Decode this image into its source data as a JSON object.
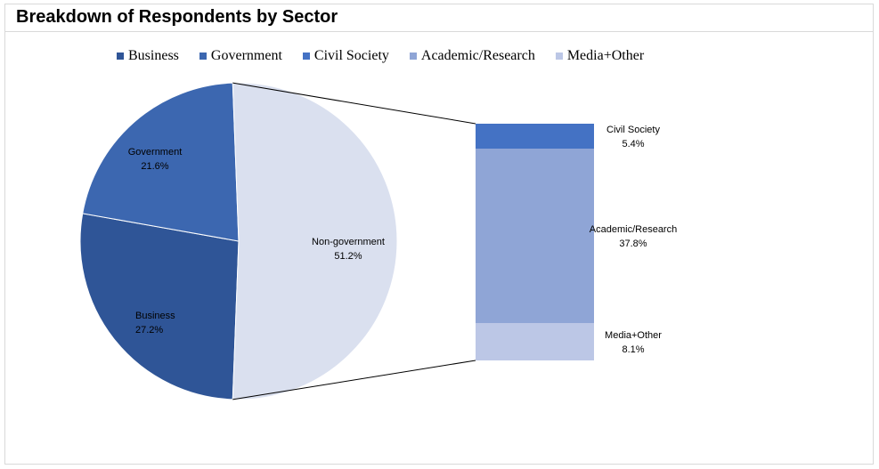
{
  "chart_data": {
    "type": "bar-of-pie",
    "title": "Breakdown of Respondents by Sector",
    "legend_position": "top",
    "pie": [
      {
        "name": "Business",
        "label": "Business",
        "value": 27.2,
        "value_label": "27.2%",
        "color": "#2f5597"
      },
      {
        "name": "Government",
        "label": "Government",
        "value": 21.6,
        "value_label": "21.6%",
        "color": "#3c67b0"
      },
      {
        "name": "Non-government",
        "label": "Non-government",
        "value": 51.2,
        "value_label": "51.2%",
        "color": "#dae0ef"
      }
    ],
    "bar": [
      {
        "name": "Civil Society",
        "label": "Civil Society",
        "value": 5.4,
        "value_label": "5.4%",
        "color": "#4472c4"
      },
      {
        "name": "Academic/Research",
        "label": "Academic/Research",
        "value": 37.8,
        "value_label": "37.8%",
        "color": "#8fa5d6"
      },
      {
        "name": "Media+Other",
        "label": "Media+Other",
        "value": 8.1,
        "value_label": "8.1%",
        "color": "#bcc7e6"
      }
    ],
    "legend": [
      {
        "label": "Business",
        "color": "#2f5597"
      },
      {
        "label": "Government",
        "color": "#3c67b0"
      },
      {
        "label": "Civil Society",
        "color": "#4472c4"
      },
      {
        "label": "Academic/Research",
        "color": "#8fa5d6"
      },
      {
        "label": "Media+Other",
        "color": "#bcc7e6"
      }
    ]
  }
}
